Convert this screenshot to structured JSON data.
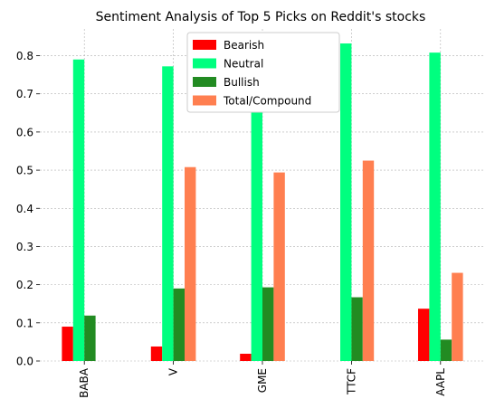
{
  "chart_data": {
    "type": "bar",
    "title": "Sentiment Analysis of Top 5 Picks on Reddit's stocks",
    "xlabel": "",
    "ylabel": "",
    "categories": [
      "BABA",
      "V",
      "GME",
      "TTCF",
      "AAPL"
    ],
    "series": [
      {
        "name": "Bearish",
        "color": "#ff0000",
        "values": [
          0.09,
          0.038,
          0.019,
          0.0,
          0.137
        ]
      },
      {
        "name": "Neutral",
        "color": "#00ff7f",
        "values": [
          0.79,
          0.772,
          0.788,
          0.832,
          0.808
        ]
      },
      {
        "name": "Bullish",
        "color": "#228b22",
        "values": [
          0.119,
          0.19,
          0.193,
          0.167,
          0.056
        ]
      },
      {
        "name": "Total/Compound",
        "color": "#ff7f50",
        "values": [
          0.0,
          0.508,
          0.494,
          0.525,
          0.231
        ]
      }
    ],
    "ylim": [
      0,
      0.87
    ],
    "yticks": [
      "0.0",
      "0.1",
      "0.2",
      "0.3",
      "0.4",
      "0.5",
      "0.6",
      "0.7",
      "0.8"
    ],
    "grid": true,
    "legend_position": "top-center"
  }
}
